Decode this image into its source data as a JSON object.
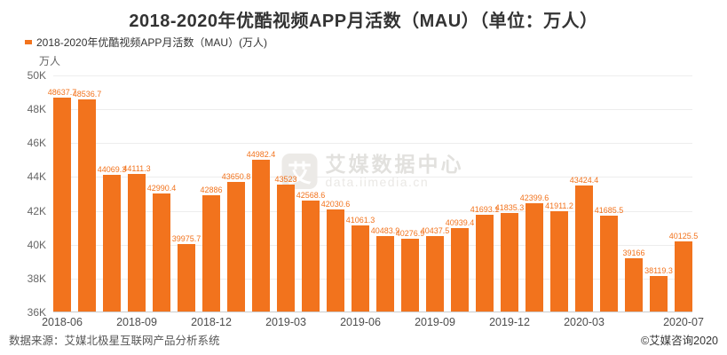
{
  "title": "2018-2020年优酷视频APP月活数（MAU）（单位：万人）",
  "legend": {
    "label": "2018-2020年优酷视频APP月活数（MAU）(万人)",
    "marker_color": "#F2731D"
  },
  "y_axis": {
    "unit": "万人",
    "ticks": [
      "50K",
      "48K",
      "46K",
      "44K",
      "42K",
      "40K",
      "38K",
      "36K"
    ],
    "min": 36000,
    "max": 50000
  },
  "x_axis": {
    "ticks": [
      {
        "label": "2018-06",
        "index": 0
      },
      {
        "label": "2018-09",
        "index": 3
      },
      {
        "label": "2018-12",
        "index": 6
      },
      {
        "label": "2019-03",
        "index": 9
      },
      {
        "label": "2019-06",
        "index": 12
      },
      {
        "label": "2019-09",
        "index": 15
      },
      {
        "label": "2019-12",
        "index": 18
      },
      {
        "label": "2020-03",
        "index": 21
      },
      {
        "label": "2020-07",
        "index": 25
      }
    ]
  },
  "chart_data": {
    "type": "bar",
    "title": "2018-2020年优酷视频APP月活数（MAU）（单位：万人）",
    "xlabel": "",
    "ylabel": "万人",
    "ylim": [
      36000,
      50000
    ],
    "grid": true,
    "legend_position": "top-left",
    "bar_color": "#F2731D",
    "categories": [
      "2018-06",
      "2018-07",
      "2018-08",
      "2018-09",
      "2018-10",
      "2018-11",
      "2018-12",
      "2019-01",
      "2019-02",
      "2019-03",
      "2019-04",
      "2019-05",
      "2019-06",
      "2019-07",
      "2019-08",
      "2019-09",
      "2019-10",
      "2019-11",
      "2019-12",
      "2020-01",
      "2020-02",
      "2020-03",
      "2020-04",
      "2020-05",
      "2020-06",
      "2020-07"
    ],
    "values": [
      48637.7,
      48536.7,
      44069.3,
      44111.3,
      42990.4,
      39975.7,
      42886,
      43650.8,
      44982.4,
      43523,
      42568.6,
      42030.6,
      41061.3,
      40483.9,
      40276.9,
      40437.5,
      40939.4,
      41693.1,
      41835.3,
      42399.6,
      41911.2,
      43424.4,
      41685.5,
      39166,
      38119.3,
      40125.5
    ],
    "labels": [
      "48637.7",
      "48536.7",
      "44069.3",
      "44111.3",
      "42990.4",
      "39975.7",
      "42886",
      "43650.8",
      "44982.4",
      "43523",
      "42568.6",
      "42030.6",
      "41061.3",
      "40483.9",
      "40276.9",
      "40437.5",
      "40939.4",
      "41693.1",
      "41835.3",
      "42399.6",
      "41911.2",
      "43424.4",
      "41685.5",
      "39166",
      "38119.3",
      "40125.5"
    ]
  },
  "watermark": {
    "logo_char": "艾",
    "line1": "艾媒数据中心",
    "line2": "data.iimedia.cn"
  },
  "footer": {
    "source": "数据来源：艾媒北极星互联网产品分析系统",
    "copyright": "©艾媒咨询2020"
  }
}
